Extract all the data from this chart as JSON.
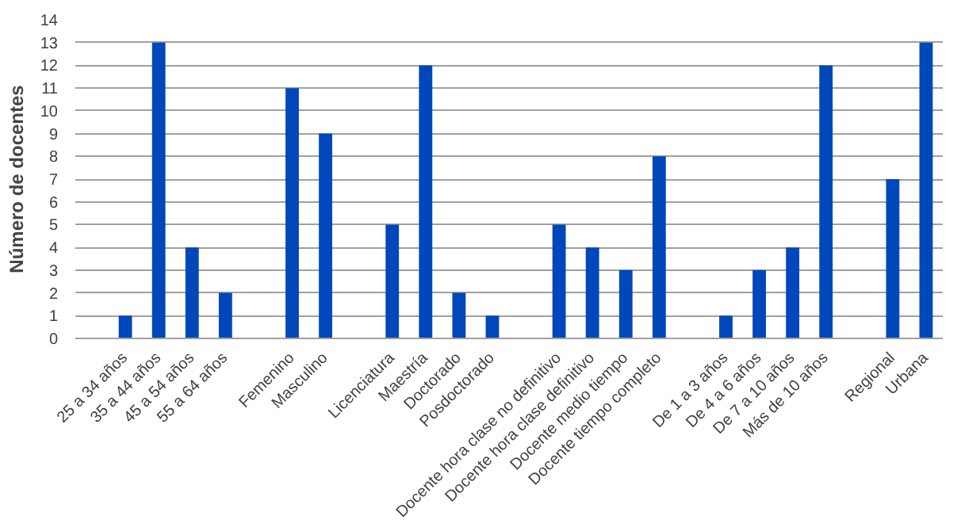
{
  "chart_data": {
    "type": "bar",
    "ylabel": "Número de docentes",
    "categories": [
      null,
      "25 a 34 años",
      "35 a 44 años",
      "45 a 54 años",
      "55 a 64 años",
      null,
      "Femenino",
      "Masculino",
      null,
      "Licenciatura",
      "Maestría",
      "Doctorado",
      "Posdoctorado",
      null,
      "Docente hora clase no definitivo",
      "Docente hora clase definitivo",
      "Docente medio tiempo",
      "Docente tiempo completo",
      null,
      "De 1 a 3 años",
      "De 4 a 6 años",
      "De 7 a 10 años",
      "Más de 10 años",
      null,
      "Regional",
      "Urbana"
    ],
    "values": [
      null,
      1,
      13,
      4,
      2,
      null,
      11,
      9,
      null,
      5,
      12,
      2,
      1,
      null,
      5,
      4,
      3,
      8,
      null,
      1,
      3,
      4,
      12,
      null,
      7,
      13
    ],
    "color": "#0047bb",
    "ylim": [
      0,
      14
    ],
    "yticks": [
      0,
      1,
      2,
      3,
      4,
      5,
      6,
      7,
      8,
      9,
      10,
      11,
      12,
      13,
      14
    ],
    "grid": "y"
  }
}
